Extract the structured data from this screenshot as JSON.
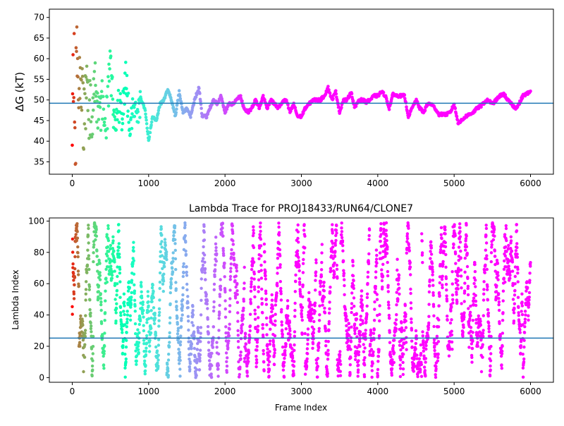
{
  "chart_data": [
    {
      "type": "scatter",
      "title": "",
      "xlabel": "",
      "ylabel": "ΔG (kT)",
      "xlim": [
        -300,
        6300
      ],
      "ylim": [
        32,
        72
      ],
      "xticks": [
        0,
        1000,
        2000,
        3000,
        4000,
        5000,
        6000
      ],
      "yticks": [
        35,
        40,
        45,
        50,
        55,
        60,
        65,
        70
      ],
      "hline": 49.2,
      "hline_color": "#1f77b4",
      "colormap": "rainbow",
      "color_by": "frame (early=red, late=violet)",
      "grid": false,
      "trend": [
        {
          "x": 0,
          "y": 50
        },
        {
          "x": 20,
          "y": 62
        },
        {
          "x": 40,
          "y": 45
        },
        {
          "x": 60,
          "y": 66
        },
        {
          "x": 80,
          "y": 50
        },
        {
          "x": 100,
          "y": 55
        },
        {
          "x": 150,
          "y": 45
        },
        {
          "x": 200,
          "y": 52
        },
        {
          "x": 250,
          "y": 44
        },
        {
          "x": 300,
          "y": 54
        },
        {
          "x": 350,
          "y": 46
        },
        {
          "x": 400,
          "y": 51
        },
        {
          "x": 450,
          "y": 46
        },
        {
          "x": 500,
          "y": 58
        },
        {
          "x": 550,
          "y": 44
        },
        {
          "x": 600,
          "y": 50
        },
        {
          "x": 650,
          "y": 46
        },
        {
          "x": 700,
          "y": 55
        },
        {
          "x": 760,
          "y": 43
        },
        {
          "x": 800,
          "y": 50
        },
        {
          "x": 850,
          "y": 46
        },
        {
          "x": 900,
          "y": 50
        },
        {
          "x": 950,
          "y": 48
        },
        {
          "x": 1000,
          "y": 40
        },
        {
          "x": 1050,
          "y": 46
        },
        {
          "x": 1100,
          "y": 45
        },
        {
          "x": 1150,
          "y": 49
        },
        {
          "x": 1200,
          "y": 50
        },
        {
          "x": 1250,
          "y": 52.5
        },
        {
          "x": 1300,
          "y": 50
        },
        {
          "x": 1350,
          "y": 46
        },
        {
          "x": 1400,
          "y": 52
        },
        {
          "x": 1450,
          "y": 47
        },
        {
          "x": 1500,
          "y": 48
        },
        {
          "x": 1550,
          "y": 46
        },
        {
          "x": 1600,
          "y": 50
        },
        {
          "x": 1660,
          "y": 53
        },
        {
          "x": 1700,
          "y": 46
        },
        {
          "x": 1760,
          "y": 46
        },
        {
          "x": 1800,
          "y": 48
        },
        {
          "x": 1850,
          "y": 50
        },
        {
          "x": 1900,
          "y": 49
        },
        {
          "x": 1950,
          "y": 51
        },
        {
          "x": 2000,
          "y": 47
        },
        {
          "x": 2050,
          "y": 49
        },
        {
          "x": 2100,
          "y": 49
        },
        {
          "x": 2150,
          "y": 50
        },
        {
          "x": 2200,
          "y": 51
        },
        {
          "x": 2250,
          "y": 48
        },
        {
          "x": 2300,
          "y": 47
        },
        {
          "x": 2350,
          "y": 48
        },
        {
          "x": 2400,
          "y": 50
        },
        {
          "x": 2450,
          "y": 48
        },
        {
          "x": 2500,
          "y": 51
        },
        {
          "x": 2550,
          "y": 48
        },
        {
          "x": 2600,
          "y": 50
        },
        {
          "x": 2650,
          "y": 49
        },
        {
          "x": 2700,
          "y": 48
        },
        {
          "x": 2750,
          "y": 49.5
        },
        {
          "x": 2800,
          "y": 50
        },
        {
          "x": 2850,
          "y": 47
        },
        {
          "x": 2900,
          "y": 49
        },
        {
          "x": 2950,
          "y": 46
        },
        {
          "x": 3000,
          "y": 46
        },
        {
          "x": 3050,
          "y": 48
        },
        {
          "x": 3100,
          "y": 49
        },
        {
          "x": 3150,
          "y": 50
        },
        {
          "x": 3200,
          "y": 50
        },
        {
          "x": 3250,
          "y": 50
        },
        {
          "x": 3300,
          "y": 51
        },
        {
          "x": 3350,
          "y": 53
        },
        {
          "x": 3400,
          "y": 50
        },
        {
          "x": 3450,
          "y": 52
        },
        {
          "x": 3500,
          "y": 47
        },
        {
          "x": 3550,
          "y": 50
        },
        {
          "x": 3600,
          "y": 50
        },
        {
          "x": 3650,
          "y": 52
        },
        {
          "x": 3700,
          "y": 48
        },
        {
          "x": 3750,
          "y": 50
        },
        {
          "x": 3800,
          "y": 50
        },
        {
          "x": 3850,
          "y": 49.5
        },
        {
          "x": 3900,
          "y": 50
        },
        {
          "x": 3950,
          "y": 51
        },
        {
          "x": 4000,
          "y": 51
        },
        {
          "x": 4050,
          "y": 52
        },
        {
          "x": 4100,
          "y": 51
        },
        {
          "x": 4150,
          "y": 48
        },
        {
          "x": 4200,
          "y": 51.5
        },
        {
          "x": 4250,
          "y": 51
        },
        {
          "x": 4300,
          "y": 51
        },
        {
          "x": 4350,
          "y": 51
        },
        {
          "x": 4400,
          "y": 46
        },
        {
          "x": 4450,
          "y": 48
        },
        {
          "x": 4500,
          "y": 50
        },
        {
          "x": 4550,
          "y": 48
        },
        {
          "x": 4600,
          "y": 47
        },
        {
          "x": 4650,
          "y": 49
        },
        {
          "x": 4700,
          "y": 49
        },
        {
          "x": 4750,
          "y": 48
        },
        {
          "x": 4800,
          "y": 46.5
        },
        {
          "x": 4850,
          "y": 46.5
        },
        {
          "x": 4900,
          "y": 46.5
        },
        {
          "x": 4950,
          "y": 47
        },
        {
          "x": 5000,
          "y": 49
        },
        {
          "x": 5050,
          "y": 44.5
        },
        {
          "x": 5100,
          "y": 45
        },
        {
          "x": 5150,
          "y": 46
        },
        {
          "x": 5200,
          "y": 46.5
        },
        {
          "x": 5250,
          "y": 47
        },
        {
          "x": 5300,
          "y": 48
        },
        {
          "x": 5350,
          "y": 48.5
        },
        {
          "x": 5400,
          "y": 49.5
        },
        {
          "x": 5450,
          "y": 50
        },
        {
          "x": 5500,
          "y": 49
        },
        {
          "x": 5550,
          "y": 50
        },
        {
          "x": 5600,
          "y": 51
        },
        {
          "x": 5650,
          "y": 51.5
        },
        {
          "x": 5700,
          "y": 50
        },
        {
          "x": 5750,
          "y": 49
        },
        {
          "x": 5800,
          "y": 48
        },
        {
          "x": 5850,
          "y": 49
        },
        {
          "x": 5900,
          "y": 51
        },
        {
          "x": 5950,
          "y": 51.5
        },
        {
          "x": 6000,
          "y": 52
        }
      ]
    },
    {
      "type": "scatter",
      "title": "Lambda Trace for PROJ18433/RUN64/CLONE7",
      "xlabel": "Frame Index",
      "ylabel": "Lambda Index",
      "xlim": [
        -300,
        6300
      ],
      "ylim": [
        -3,
        102
      ],
      "xticks": [
        0,
        1000,
        2000,
        3000,
        4000,
        5000,
        6000
      ],
      "yticks": [
        0,
        20,
        40,
        60,
        80,
        100
      ],
      "y_range": [
        0,
        99
      ],
      "n_frames": 6000,
      "hline": 25.2,
      "hline_color": "#1f77b4",
      "colormap": "rainbow",
      "color_by": "frame (early=red, late=violet)",
      "grid": false
    }
  ]
}
